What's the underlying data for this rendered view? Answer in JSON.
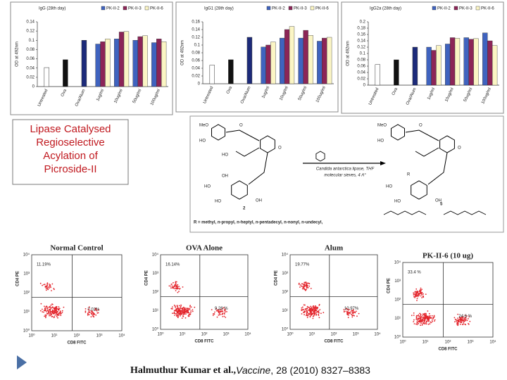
{
  "chart_data": [
    {
      "type": "bar",
      "title": "IgG (28th day)",
      "y_label": "OD at 492nm",
      "categories": [
        "Untreated",
        "Ova",
        "Ova/Alum",
        "1ug/ml",
        "10ug/ml",
        "50ug/ml",
        "100ug/ml"
      ],
      "control_values": [
        0.041,
        0.058,
        0.1,
        null,
        null,
        null,
        null
      ],
      "control_colors": [
        "#ffffff",
        "#111111",
        "#1c2a7a",
        null,
        null,
        null,
        null
      ],
      "series": [
        {
          "name": "PK-II-2",
          "color": "#3f63bf",
          "values": [
            null,
            null,
            null,
            0.092,
            0.103,
            0.1,
            0.095
          ]
        },
        {
          "name": "PK-II-3",
          "color": "#8c2557",
          "values": [
            null,
            null,
            null,
            0.097,
            0.118,
            0.108,
            0.103
          ]
        },
        {
          "name": "PK-II-6",
          "color": "#fbf5c4",
          "values": [
            null,
            null,
            null,
            0.103,
            0.119,
            0.11,
            0.097
          ]
        }
      ],
      "ylim": [
        0,
        0.14
      ],
      "yticks": [
        0,
        0.02,
        0.04,
        0.06,
        0.08,
        0.1,
        0.12,
        0.14
      ]
    },
    {
      "type": "bar",
      "title": "IgG1 (28th day)",
      "y_label": "OD at 492nm",
      "categories": [
        "Untreated",
        "Ova",
        "Ova/Alum",
        "1ug/ml",
        "10ug/ml",
        "50ug/ml",
        "100ug/ml"
      ],
      "control_values": [
        0.048,
        0.062,
        0.12,
        null,
        null,
        null,
        null
      ],
      "control_colors": [
        "#ffffff",
        "#111111",
        "#1c2a7a",
        null,
        null,
        null,
        null
      ],
      "series": [
        {
          "name": "PK-II-2",
          "color": "#3f63bf",
          "values": [
            null,
            null,
            null,
            0.095,
            0.118,
            0.118,
            0.11
          ]
        },
        {
          "name": "PK-II-3",
          "color": "#8c2557",
          "values": [
            null,
            null,
            null,
            0.1,
            0.14,
            0.138,
            0.118
          ]
        },
        {
          "name": "PK-II-6",
          "color": "#fbf5c4",
          "values": [
            null,
            null,
            null,
            0.108,
            0.148,
            0.125,
            0.12
          ]
        }
      ],
      "ylim": [
        0,
        0.16
      ],
      "yticks": [
        0,
        0.02,
        0.04,
        0.06,
        0.08,
        0.1,
        0.12,
        0.14,
        0.16
      ]
    },
    {
      "type": "bar",
      "title": "IgG2a (28th day)",
      "y_label": "OD at 492nm",
      "categories": [
        "Untreated",
        "Ova",
        "Ova/Alum",
        "1ug/ml",
        "10ug/ml",
        "50ug/ml",
        "100ug/ml"
      ],
      "control_values": [
        0.065,
        0.08,
        0.12,
        null,
        null,
        null,
        null
      ],
      "control_colors": [
        "#ffffff",
        "#111111",
        "#1c2a7a",
        null,
        null,
        null,
        null
      ],
      "series": [
        {
          "name": "PK-II-2",
          "color": "#3f63bf",
          "values": [
            null,
            null,
            null,
            0.12,
            0.13,
            0.15,
            0.165
          ]
        },
        {
          "name": "PK-II-3",
          "color": "#8c2557",
          "values": [
            null,
            null,
            null,
            0.11,
            0.15,
            0.145,
            0.14
          ]
        },
        {
          "name": "PK-II-6",
          "color": "#fbf5c4",
          "values": [
            null,
            null,
            null,
            0.125,
            0.148,
            0.147,
            0.125
          ]
        }
      ],
      "ylim": [
        0,
        0.2
      ],
      "yticks": [
        0,
        0.02,
        0.04,
        0.06,
        0.08,
        0.1,
        0.12,
        0.14,
        0.16,
        0.18,
        0.2
      ]
    }
  ],
  "caption": [
    "Lipase Catalysed",
    "Regioselective",
    "Acylation of",
    "Picroside-II"
  ],
  "scheme": {
    "reagent": [
      "Candida antarctica lipase, THF",
      "molecular sieves, 4 A°"
    ],
    "reactant_number": "2",
    "product_number": "5",
    "left_labels": [
      "MeO",
      "HO",
      "HO",
      "OH",
      "HO",
      "HO",
      "OH",
      "O",
      "O"
    ],
    "right_labels": [
      "MeO",
      "HO",
      "R",
      "O",
      "HO",
      "HO",
      "OH",
      "O"
    ],
    "r_groups": "R = methyl, n-propyl, n-heptyl, n-pentadecyl, n-nonyl, n-undecyl,"
  },
  "flow": {
    "x_label": "CD8 FITC",
    "y_label": "CD4 PE",
    "ticks": [
      "10⁰",
      "10¹",
      "10²",
      "10³",
      "10⁴"
    ],
    "plots": [
      {
        "title": "Normal Control",
        "upper_left": "11.19%",
        "lower_right": "7.02%"
      },
      {
        "title": "OVA Alone",
        "upper_left": "16.14%",
        "lower_right": "9.28 %"
      },
      {
        "title": "Alum",
        "upper_left": "19.77%",
        "lower_right": "10.97%"
      },
      {
        "title": "PK-II-6 (10 ug)",
        "upper_left": "33.4 %",
        "lower_right": "24.6 %"
      }
    ]
  },
  "citation": {
    "authors": "Halmuthur Kumar et al.,",
    "journal": "Vaccine",
    "details": ", 28 (2010) 8327–8383"
  }
}
